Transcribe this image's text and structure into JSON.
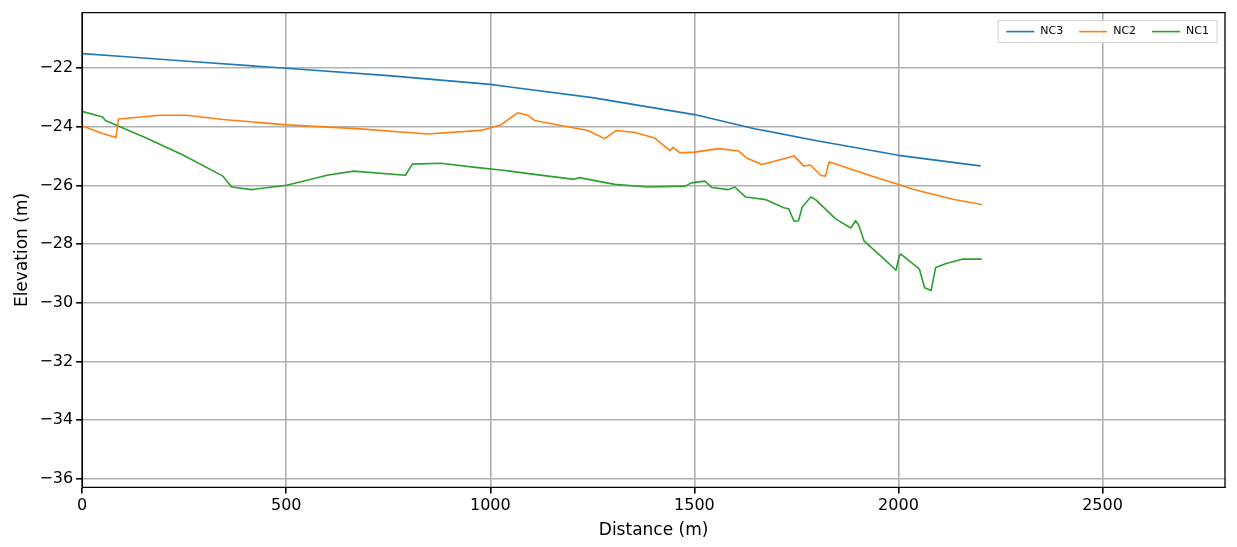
{
  "chart_data": {
    "type": "line",
    "xlabel": "Distance (m)",
    "ylabel": "Elevation (m)",
    "xlim": [
      0,
      2800
    ],
    "xticks": [
      0,
      500,
      1000,
      1500,
      2000,
      2500
    ],
    "ylim": [
      -36.3,
      -20.1
    ],
    "yticks": [
      -36,
      -34,
      -32,
      -30,
      -28,
      -26,
      -24,
      -22
    ],
    "grid": true,
    "legend": "top right",
    "marker": "none",
    "line_style": "solid",
    "series": [
      {
        "name": "NC3",
        "color": "#1f77b4",
        "x": [
          0,
          100,
          250,
          500,
          750,
          1000,
          1250,
          1500,
          1650,
          1800,
          2000,
          2200
        ],
        "values": [
          -21.5,
          -21.6,
          -21.75,
          -22.0,
          -22.25,
          -22.55,
          -23.0,
          -23.58,
          -24.07,
          -24.47,
          -24.97,
          -25.33
        ]
      },
      {
        "name": "NC2",
        "color": "#ff7f0e",
        "x": [
          0,
          46,
          83,
          89,
          190,
          255,
          345,
          501,
          673,
          846,
          977,
          1026,
          1067,
          1092,
          1108,
          1239,
          1280,
          1309,
          1354,
          1403,
          1440,
          1448,
          1464,
          1501,
          1559,
          1608,
          1629,
          1666,
          1744,
          1768,
          1784,
          1809,
          1821,
          1830,
          1855,
          1928,
          2010,
          2035,
          2133,
          2203
        ],
        "values": [
          -23.96,
          -24.21,
          -24.36,
          -23.73,
          -23.6,
          -23.6,
          -23.75,
          -23.93,
          -24.06,
          -24.24,
          -24.12,
          -23.93,
          -23.52,
          -23.6,
          -23.78,
          -24.12,
          -24.4,
          -24.12,
          -24.19,
          -24.38,
          -24.81,
          -24.7,
          -24.88,
          -24.86,
          -24.74,
          -24.82,
          -25.07,
          -25.28,
          -24.99,
          -25.34,
          -25.3,
          -25.65,
          -25.68,
          -25.2,
          -25.31,
          -25.65,
          -26.01,
          -26.13,
          -26.47,
          -26.65
        ]
      },
      {
        "name": "NC1",
        "color": "#2ca02c",
        "x": [
          0,
          50,
          57,
          157,
          247,
          345,
          366,
          415,
          501,
          600,
          665,
          792,
          809,
          878,
          969,
          1026,
          1108,
          1206,
          1218,
          1305,
          1387,
          1477,
          1493,
          1526,
          1543,
          1583,
          1599,
          1625,
          1674,
          1719,
          1731,
          1744,
          1755,
          1764,
          1785,
          1797,
          1846,
          1883,
          1895,
          1903,
          1916,
          1961,
          1994,
          2002,
          2006,
          2051,
          2064,
          2080,
          2091,
          2117,
          2158,
          2203
        ],
        "values": [
          -23.47,
          -23.66,
          -23.78,
          -24.38,
          -24.96,
          -25.68,
          -26.05,
          -26.14,
          -25.99,
          -25.65,
          -25.51,
          -25.65,
          -25.27,
          -25.24,
          -25.39,
          -25.47,
          -25.62,
          -25.79,
          -25.73,
          -25.96,
          -26.05,
          -26.02,
          -25.91,
          -25.85,
          -26.07,
          -26.14,
          -26.05,
          -26.39,
          -26.48,
          -26.76,
          -26.79,
          -27.22,
          -27.2,
          -26.74,
          -26.39,
          -26.48,
          -27.14,
          -27.45,
          -27.2,
          -27.37,
          -27.9,
          -28.46,
          -28.89,
          -28.4,
          -28.34,
          -28.84,
          -29.49,
          -29.58,
          -28.8,
          -28.66,
          -28.51,
          -28.51
        ]
      }
    ]
  }
}
